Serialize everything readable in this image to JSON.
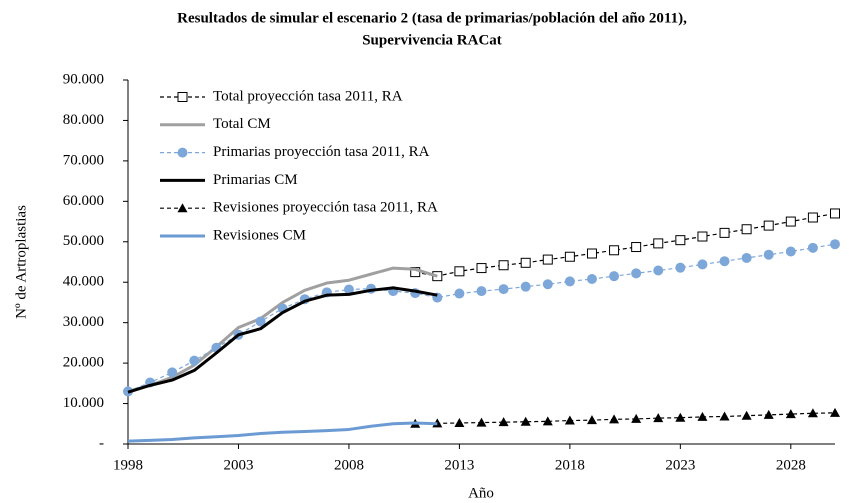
{
  "chart_data": {
    "type": "line",
    "title": [
      "Resultados de simular el escenario 2 (tasa de primarias/población del año 2011),",
      "Supervivencia RACat"
    ],
    "xlabel": "Año",
    "ylabel": "Nº de Artroplastias",
    "x": [
      1998,
      1999,
      2000,
      2001,
      2002,
      2003,
      2004,
      2005,
      2006,
      2007,
      2008,
      2009,
      2010,
      2011,
      2012,
      2013,
      2014,
      2015,
      2016,
      2017,
      2018,
      2019,
      2020,
      2021,
      2022,
      2023,
      2024,
      2025,
      2026,
      2027,
      2028,
      2029,
      2030
    ],
    "xlim": [
      1998,
      2030
    ],
    "xticks": [
      1998,
      2003,
      2008,
      2013,
      2018,
      2023,
      2028
    ],
    "ylim": [
      0,
      90000
    ],
    "yticks": [
      {
        "value": 0,
        "label": "-"
      },
      {
        "value": 10000,
        "label": "10.000"
      },
      {
        "value": 20000,
        "label": "20.000"
      },
      {
        "value": 30000,
        "label": "30.000"
      },
      {
        "value": 40000,
        "label": "40.000"
      },
      {
        "value": 50000,
        "label": "50.000"
      },
      {
        "value": 60000,
        "label": "60.000"
      },
      {
        "value": 70000,
        "label": "70.000"
      },
      {
        "value": 80000,
        "label": "80.000"
      },
      {
        "value": 90000,
        "label": "90.000"
      }
    ],
    "grid": false,
    "legend": "upper-left",
    "series": [
      {
        "name": "Total proyección tasa 2011, RA",
        "color": "#000000",
        "dash": true,
        "marker": "square",
        "values": [
          null,
          null,
          null,
          null,
          null,
          null,
          null,
          null,
          null,
          null,
          null,
          null,
          null,
          42500,
          41500,
          42700,
          43500,
          44200,
          44800,
          45600,
          46300,
          47100,
          47900,
          48700,
          49600,
          50400,
          51300,
          52200,
          53100,
          54000,
          55000,
          56000,
          57000
        ]
      },
      {
        "name": "Total CM",
        "color": "#a0a0a0",
        "dash": false,
        "marker": "none",
        "values": [
          13000,
          14500,
          16500,
          19500,
          24000,
          28800,
          31000,
          35000,
          38000,
          39800,
          40500,
          42000,
          43500,
          43200,
          41500,
          null,
          null,
          null,
          null,
          null,
          null,
          null,
          null,
          null,
          null,
          null,
          null,
          null,
          null,
          null,
          null,
          null,
          null
        ]
      },
      {
        "name": "Primarias proyección tasa 2011, RA",
        "color": "#7da7d9",
        "dash": true,
        "marker": "circle",
        "values": [
          13000,
          15200,
          17700,
          20600,
          23800,
          27000,
          30300,
          33500,
          35800,
          37500,
          38200,
          38400,
          37800,
          37300,
          36200,
          37200,
          37800,
          38300,
          38900,
          39500,
          40200,
          40800,
          41500,
          42200,
          42900,
          43600,
          44400,
          45200,
          46000,
          46800,
          47600,
          48500,
          49400
        ]
      },
      {
        "name": "Primarias CM",
        "color": "#000000",
        "dash": false,
        "marker": "none",
        "values": [
          12800,
          14500,
          15800,
          18200,
          22500,
          27000,
          28500,
          32500,
          35300,
          36800,
          37000,
          38000,
          38600,
          37800,
          36800,
          null,
          null,
          null,
          null,
          null,
          null,
          null,
          null,
          null,
          null,
          null,
          null,
          null,
          null,
          null,
          null,
          null,
          null
        ]
      },
      {
        "name": "Revisiones proyección tasa 2011, RA",
        "color": "#000000",
        "dash": true,
        "marker": "triangle",
        "values": [
          null,
          null,
          null,
          null,
          null,
          null,
          null,
          null,
          null,
          null,
          null,
          null,
          null,
          5000,
          5100,
          5200,
          5300,
          5400,
          5500,
          5600,
          5800,
          5900,
          6100,
          6200,
          6400,
          6500,
          6700,
          6800,
          7000,
          7200,
          7400,
          7600,
          7700
        ]
      },
      {
        "name": "Revisiones CM",
        "color": "#6b9bd2",
        "dash": false,
        "marker": "none",
        "values": [
          700,
          900,
          1100,
          1500,
          1800,
          2100,
          2600,
          2900,
          3100,
          3300,
          3600,
          4400,
          5000,
          5200,
          5000,
          null,
          null,
          null,
          null,
          null,
          null,
          null,
          null,
          null,
          null,
          null,
          null,
          null,
          null,
          null,
          null,
          null,
          null
        ]
      }
    ]
  }
}
